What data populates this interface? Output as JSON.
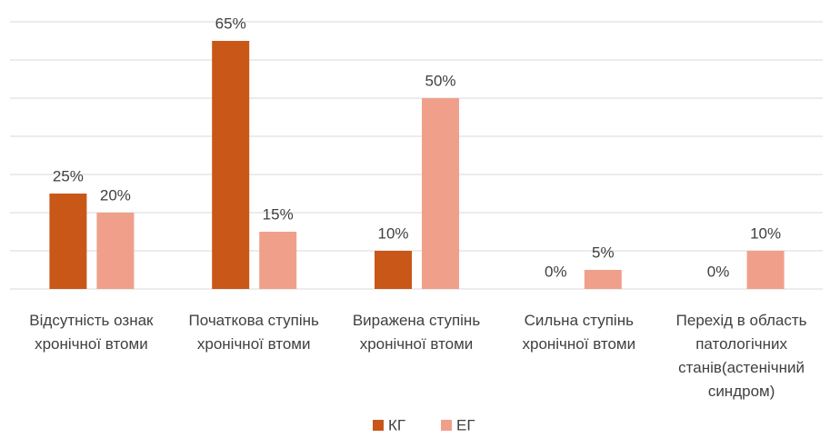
{
  "chart_data": {
    "type": "bar",
    "categories": [
      "Відсутність ознак хронічної втоми",
      "Початкова ступінь хронічної втоми",
      "Виражена ступінь хронічної втоми",
      "Сильна ступінь хронічної втоми",
      "Перехід в область патологічних станів(астенічний синдром)"
    ],
    "series": [
      {
        "name": "КГ",
        "color": "#c95718",
        "values": [
          25,
          65,
          10,
          0,
          0
        ],
        "value_labels": [
          "25%",
          "65%",
          "10%",
          "0%",
          "0%"
        ]
      },
      {
        "name": "ЕГ",
        "color": "#f0a08a",
        "values": [
          20,
          15,
          50,
          5,
          10
        ],
        "value_labels": [
          "20%",
          "15%",
          "50%",
          "5%",
          "10%"
        ]
      }
    ],
    "ylim": [
      0,
      70
    ],
    "yticks": [
      0,
      10,
      20,
      30,
      40,
      50,
      60,
      70
    ],
    "grid": true,
    "legend": "bottom"
  }
}
